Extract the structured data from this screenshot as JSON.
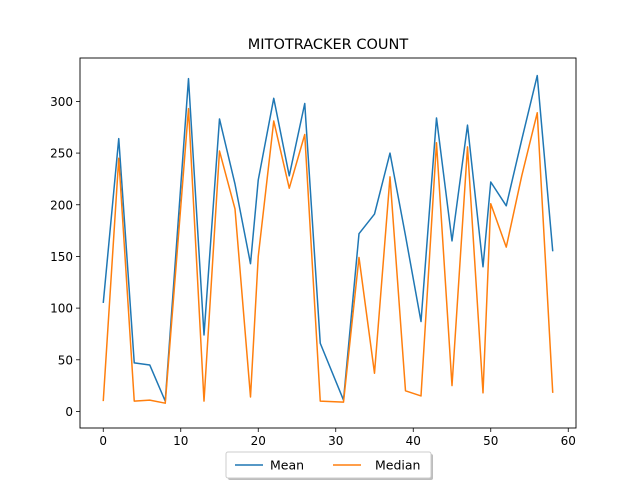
{
  "chart_data": {
    "type": "line",
    "title": "MITOTRACKER COUNT",
    "xlabel": "",
    "ylabel": "",
    "xlim": [
      -3.0,
      61.0
    ],
    "ylim": [
      -16.0,
      342.0
    ],
    "xticks": [
      0,
      10,
      20,
      30,
      40,
      50,
      60
    ],
    "yticks": [
      0,
      50,
      100,
      150,
      200,
      250,
      300
    ],
    "grid": false,
    "legend": {
      "placement": "bottom-center",
      "columns": 2
    },
    "series": [
      {
        "name": "Mean",
        "color": "#1f77b4",
        "x": [
          0,
          2,
          4,
          6,
          8,
          11,
          13,
          15,
          17,
          19,
          20,
          22,
          24,
          26,
          28,
          31,
          33,
          35,
          37,
          39,
          41,
          43,
          45,
          47,
          49,
          50,
          52,
          54,
          56,
          58
        ],
        "y": [
          105,
          264,
          47,
          45,
          10,
          322,
          74,
          283,
          220,
          143,
          224,
          303,
          228,
          298,
          66,
          11,
          172,
          191,
          250,
          170,
          87,
          284,
          165,
          277,
          140,
          222,
          199,
          263,
          325,
          155
        ]
      },
      {
        "name": "Median",
        "color": "#ff7f0e",
        "x": [
          0,
          2,
          4,
          6,
          8,
          11,
          13,
          15,
          17,
          19,
          20,
          22,
          24,
          26,
          28,
          31,
          33,
          35,
          37,
          39,
          41,
          43,
          45,
          47,
          49,
          50,
          52,
          54,
          56,
          58
        ],
        "y": [
          10,
          245,
          10,
          11,
          8,
          293,
          10,
          252,
          196,
          14,
          150,
          281,
          216,
          268,
          10,
          9,
          149,
          37,
          227,
          20,
          15,
          260,
          25,
          256,
          18,
          201,
          159,
          228,
          289,
          18
        ]
      }
    ]
  }
}
